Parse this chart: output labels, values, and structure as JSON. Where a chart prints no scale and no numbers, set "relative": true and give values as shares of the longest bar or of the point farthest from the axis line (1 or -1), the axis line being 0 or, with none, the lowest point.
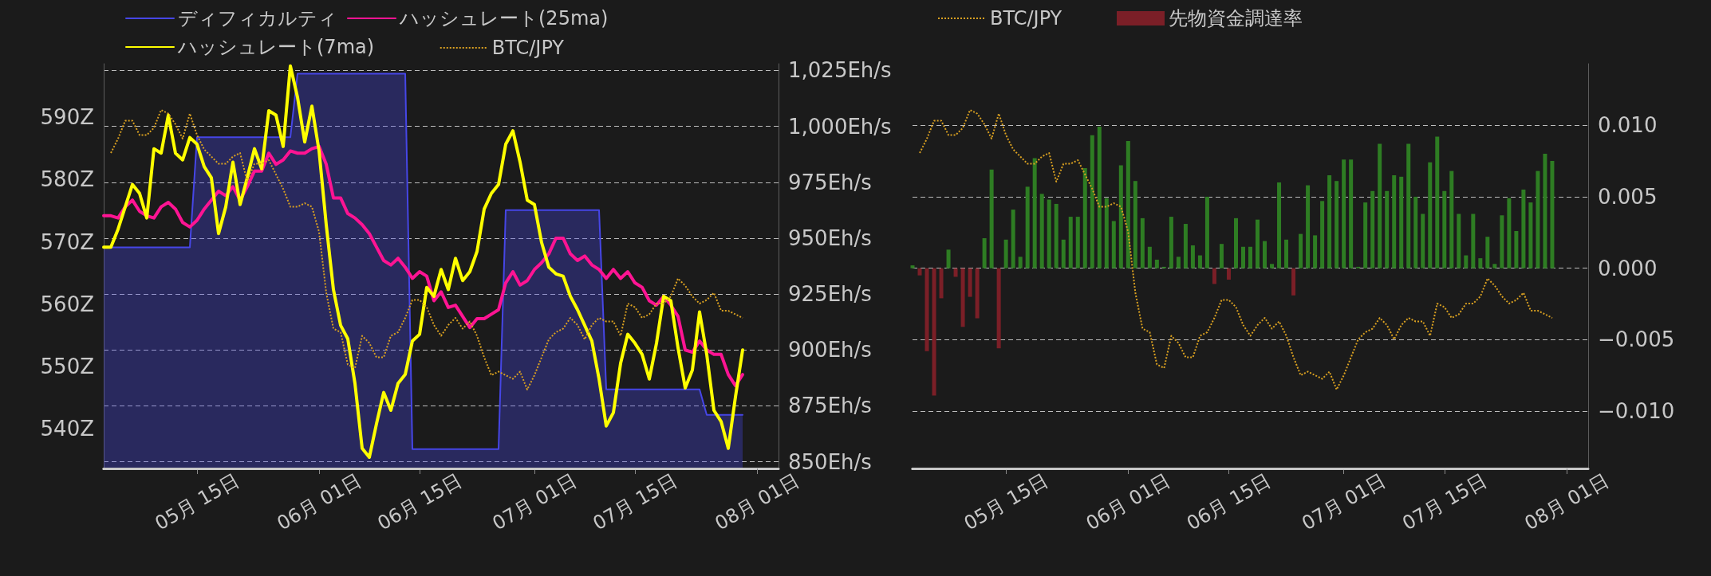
{
  "chart_data": [
    {
      "type": "line",
      "x": [
        "--05-02",
        "--05-03",
        "--05-04",
        "--05-05",
        "--05-06",
        "--05-07",
        "--05-08",
        "--05-09",
        "--05-10",
        "--05-11",
        "--05-12",
        "--05-13",
        "--05-14",
        "--05-15",
        "--05-16",
        "--05-17",
        "--05-18",
        "--05-19",
        "--05-20",
        "--05-21",
        "--05-22",
        "--05-23",
        "--05-24",
        "--05-25",
        "--05-26",
        "--05-27",
        "--05-28",
        "--05-29",
        "--05-30",
        "--05-31",
        "--06-01",
        "--06-02",
        "--06-03",
        "--06-04",
        "--06-05",
        "--06-06",
        "--06-07",
        "--06-08",
        "--06-09",
        "--06-10",
        "--06-11",
        "--06-12",
        "--06-13",
        "--06-14",
        "--06-15",
        "--06-16",
        "--06-17",
        "--06-18",
        "--06-19",
        "--06-20",
        "--06-21",
        "--06-22",
        "--06-23",
        "--06-24",
        "--06-25",
        "--06-26",
        "--06-27",
        "--06-28",
        "--06-29",
        "--06-30",
        "--07-01",
        "--07-02",
        "--07-03",
        "--07-04",
        "--07-05",
        "--07-06",
        "--07-07",
        "--07-08",
        "--07-09",
        "--07-10",
        "--07-11",
        "--07-12",
        "--07-13",
        "--07-14",
        "--07-15",
        "--07-16",
        "--07-17",
        "--07-18",
        "--07-19",
        "--07-20",
        "--07-21",
        "--07-22",
        "--07-23",
        "--07-24",
        "--07-25",
        "--07-26",
        "--07-27",
        "--07-28",
        "--07-29",
        "--07-30"
      ],
      "xlim": [
        "--05-02",
        "--08-04"
      ],
      "xticks": [
        {
          "value": "--05-15",
          "label": "05月 15日"
        },
        {
          "value": "--06-01",
          "label": "06月 01日"
        },
        {
          "value": "--06-15",
          "label": "06月 15日"
        },
        {
          "value": "--07-01",
          "label": "07月 01日"
        },
        {
          "value": "--07-15",
          "label": "07月 15日"
        },
        {
          "value": "--08-01",
          "label": "08月 01日"
        }
      ],
      "ylim": [
        533.6,
        598.6
      ],
      "yticks": [
        {
          "value": 540,
          "label": "540Z"
        },
        {
          "value": 550,
          "label": "550Z"
        },
        {
          "value": 560,
          "label": "560Z"
        },
        {
          "value": 570,
          "label": "570Z"
        },
        {
          "value": 580,
          "label": "580Z"
        },
        {
          "value": 590,
          "label": "590Z"
        }
      ],
      "y2lim": [
        847,
        1028
      ],
      "y2ticks": [
        {
          "value": 850,
          "label": "850Eh/s"
        },
        {
          "value": 875,
          "label": "875Eh/s"
        },
        {
          "value": 900,
          "label": "900Eh/s"
        },
        {
          "value": 925,
          "label": "925Eh/s"
        },
        {
          "value": 950,
          "label": "950Eh/s"
        },
        {
          "value": 975,
          "label": "975Eh/s"
        },
        {
          "value": 1000,
          "label": "1,000Eh/s"
        },
        {
          "value": 1025,
          "label": "1,025Eh/s"
        }
      ],
      "grid": "y2",
      "legend": "top left",
      "marker": "none",
      "series": [
        {
          "name": "ディフィカルティ",
          "type": "area",
          "color": "#4646e6",
          "values": [
            569.1,
            569.1,
            569.1,
            569.1,
            569.1,
            569.1,
            569.1,
            569.1,
            569.1,
            569.1,
            569.1,
            569.1,
            569.1,
            586.8,
            586.8,
            586.8,
            586.8,
            586.8,
            586.8,
            586.8,
            586.8,
            586.8,
            586.8,
            586.8,
            586.8,
            586.8,
            586.8,
            597,
            597,
            597,
            597,
            597,
            597,
            597,
            597,
            597,
            597,
            597,
            597,
            597,
            597,
            597,
            597,
            536.7,
            536.7,
            536.7,
            536.7,
            536.7,
            536.7,
            536.7,
            536.7,
            536.7,
            536.7,
            536.7,
            536.7,
            536.7,
            575.1,
            575.1,
            575.1,
            575.1,
            575.1,
            575.1,
            575.1,
            575.1,
            575.1,
            575.1,
            575.1,
            575.1,
            575.1,
            575.1,
            546.3,
            546.3,
            546.3,
            546.3,
            546.3,
            546.3,
            546.3,
            546.3,
            546.3,
            546.3,
            546.3,
            546.3,
            546.3,
            546.3,
            542.2,
            542.2,
            542.2,
            542.2,
            542.2,
            542.2
          ]
        },
        {
          "name": "ハッシュレート(25ma)",
          "axis": "y2",
          "color": "#ff1493",
          "values": [
            960,
            960,
            959,
            964,
            967,
            962,
            960,
            959,
            964,
            966,
            963,
            957,
            955,
            958,
            963,
            967,
            971,
            969,
            973,
            967,
            973,
            980,
            980,
            988,
            983,
            985,
            989,
            988,
            988,
            990,
            991,
            983,
            968,
            968,
            961,
            959,
            956,
            952,
            946,
            940,
            938,
            941,
            937,
            932,
            935,
            933,
            922,
            926,
            919,
            920,
            915,
            910,
            914,
            914,
            916,
            918,
            930,
            935,
            929,
            931,
            936,
            939,
            943,
            950,
            950,
            943,
            940,
            942,
            938,
            936,
            932,
            936,
            932,
            935,
            930,
            928,
            922,
            920,
            924,
            920,
            915,
            900,
            899,
            904,
            900,
            898,
            898,
            889,
            884,
            889
          ]
        },
        {
          "name": "ハッシュレート(7ma)",
          "axis": "y2",
          "color": "#ffff00",
          "values": [
            946,
            946,
            954,
            964,
            974,
            970,
            959,
            990,
            988,
            1005,
            988,
            985,
            995,
            992,
            982,
            977,
            952,
            964,
            984,
            965,
            977,
            990,
            981,
            1007,
            1005,
            991,
            1027,
            1013,
            993,
            1009,
            989,
            956,
            927,
            911,
            905,
            885,
            856,
            852,
            867,
            881,
            873,
            885,
            889,
            904,
            907,
            928,
            924,
            936,
            927,
            941,
            931,
            935,
            944,
            963,
            970,
            974,
            992,
            998,
            984,
            967,
            965,
            948,
            937,
            934,
            933,
            924,
            918,
            911,
            904,
            887,
            866,
            872,
            894,
            907,
            903,
            898,
            887,
            903,
            924,
            922,
            901,
            883,
            891,
            917,
            898,
            873,
            868,
            856,
            879,
            900
          ]
        }
      ]
    },
    {
      "type": "line",
      "relative": true,
      "categories": [
        null,
        null,
        null,
        null,
        null,
        null,
        null,
        null,
        null,
        null,
        null,
        null,
        null,
        null,
        null,
        null,
        null,
        null,
        null,
        null,
        null,
        null,
        null,
        null,
        null,
        null,
        null,
        null,
        null,
        null,
        null,
        null,
        null,
        null,
        null,
        null,
        null,
        null,
        null,
        null,
        null,
        null,
        null,
        null,
        null,
        null,
        null,
        null,
        null,
        null,
        null,
        null,
        null,
        null,
        null,
        null,
        null,
        null,
        null,
        null,
        null,
        null,
        null,
        null,
        null,
        null,
        null,
        null,
        null,
        null,
        null,
        null,
        null,
        null,
        null,
        null,
        null,
        null,
        null,
        null,
        null,
        null,
        null,
        null,
        null,
        null,
        null,
        null,
        null,
        null
      ],
      "legend": "top right",
      "marker": "none",
      "line_style": "dotted",
      "series": [
        {
          "name": "BTC/JPY",
          "color": "#d9a021",
          "values": [
            null,
            0.88,
            0.92,
            0.97,
            0.97,
            0.93,
            0.93,
            0.95,
            1.0,
            0.99,
            0.96,
            0.92,
            0.99,
            0.93,
            0.89,
            0.87,
            0.85,
            0.85,
            0.87,
            0.88,
            0.8,
            0.85,
            0.85,
            0.86,
            0.82,
            0.78,
            0.73,
            0.73,
            0.74,
            0.73,
            0.66,
            0.49,
            0.39,
            0.38,
            0.29,
            0.28,
            0.37,
            0.35,
            0.31,
            0.31,
            0.37,
            0.38,
            0.42,
            0.47,
            0.47,
            0.45,
            0.4,
            0.37,
            0.4,
            0.42,
            0.39,
            0.41,
            0.37,
            0.31,
            0.26,
            0.27,
            0.26,
            0.25,
            0.27,
            0.22,
            0.26,
            0.31,
            0.36,
            0.38,
            0.39,
            0.42,
            0.4,
            0.36,
            0.4,
            0.42,
            0.41,
            0.41,
            0.37,
            0.46,
            0.45,
            0.42,
            0.43,
            0.46,
            0.46,
            0.48,
            0.53,
            0.51,
            0.48,
            0.46,
            0.47,
            0.49,
            0.44,
            0.44,
            0.43,
            0.42
          ]
        }
      ]
    },
    {
      "type": "bar",
      "x": [
        "--05-02",
        "--05-03",
        "--05-04",
        "--05-05",
        "--05-06",
        "--05-07",
        "--05-08",
        "--05-09",
        "--05-10",
        "--05-11",
        "--05-12",
        "--05-13",
        "--05-14",
        "--05-15",
        "--05-16",
        "--05-17",
        "--05-18",
        "--05-19",
        "--05-20",
        "--05-21",
        "--05-22",
        "--05-23",
        "--05-24",
        "--05-25",
        "--05-26",
        "--05-27",
        "--05-28",
        "--05-29",
        "--05-30",
        "--05-31",
        "--06-01",
        "--06-02",
        "--06-03",
        "--06-04",
        "--06-05",
        "--06-06",
        "--06-07",
        "--06-08",
        "--06-09",
        "--06-10",
        "--06-11",
        "--06-12",
        "--06-13",
        "--06-14",
        "--06-15",
        "--06-16",
        "--06-17",
        "--06-18",
        "--06-19",
        "--06-20",
        "--06-21",
        "--06-22",
        "--06-23",
        "--06-24",
        "--06-25",
        "--06-26",
        "--06-27",
        "--06-28",
        "--06-29",
        "--06-30",
        "--07-01",
        "--07-02",
        "--07-03",
        "--07-04",
        "--07-05",
        "--07-06",
        "--07-07",
        "--07-08",
        "--07-09",
        "--07-10",
        "--07-11",
        "--07-12",
        "--07-13",
        "--07-14",
        "--07-15",
        "--07-16",
        "--07-17",
        "--07-18",
        "--07-19",
        "--07-20",
        "--07-21",
        "--07-22",
        "--07-23",
        "--07-24",
        "--07-25",
        "--07-26",
        "--07-27",
        "--07-28",
        "--07-29",
        "--07-30"
      ],
      "xlim": [
        "--05-02",
        "--08-04"
      ],
      "xticks": [
        {
          "value": "--05-15",
          "label": "05月 15日"
        },
        {
          "value": "--06-01",
          "label": "06月 01日"
        },
        {
          "value": "--06-15",
          "label": "06月 15日"
        },
        {
          "value": "--07-01",
          "label": "07月 01日"
        },
        {
          "value": "--07-15",
          "label": "07月 15日"
        },
        {
          "value": "--08-01",
          "label": "08月 01日"
        }
      ],
      "y2lim": [
        -0.014,
        0.0143
      ],
      "y2ticks": [
        {
          "value": -0.01,
          "label": "−0.010"
        },
        {
          "value": -0.005,
          "label": "−0.005"
        },
        {
          "value": 0,
          "label": "0.000"
        },
        {
          "value": 0.005,
          "label": "0.005"
        },
        {
          "value": 0.01,
          "label": "0.010"
        }
      ],
      "grid": "y2",
      "legend": "top left",
      "series": [
        {
          "name": "先物資金調達率",
          "axis": "y2",
          "color": "#7b1f27",
          "values": [
            0.0002,
            -0.0005,
            -0.0058,
            -0.0089,
            -0.0021,
            0.0013,
            -0.0006,
            -0.0041,
            -0.002,
            -0.0035,
            0.0021,
            0.0069,
            -0.0056,
            0.002,
            0.0041,
            0.0008,
            0.0057,
            0.0077,
            0.0052,
            0.0048,
            0.0045,
            0.002,
            0.0036,
            0.0036,
            0.007,
            0.0093,
            0.0099,
            0.0049,
            0.0033,
            0.0072,
            0.0089,
            0.0061,
            0.0035,
            0.0015,
            0.0006,
            0.0001,
            0.0036,
            0.0008,
            0.0031,
            0.0016,
            0.0009,
            0.005,
            -0.0011,
            0.0017,
            -0.0008,
            0.0035,
            0.0015,
            0.0015,
            0.0034,
            0.0019,
            0.0003,
            0.006,
            0.002,
            -0.0019,
            0.0024,
            0.0058,
            0.0023,
            0.0047,
            0.0065,
            0.0061,
            0.0076,
            0.0076,
            0.0001,
            0.0046,
            0.0054,
            0.0087,
            0.0054,
            0.0065,
            0.0064,
            0.0087,
            0.005,
            0.0038,
            0.0074,
            0.0092,
            0.0054,
            0.0068,
            0.0038,
            0.0009,
            0.0038,
            0.0007,
            0.0022,
            0.0003,
            0.0037,
            0.0049,
            0.0026,
            0.0055,
            0.0046,
            0.0068,
            0.008,
            0.0075
          ],
          "colors": [
            "#2e7d23",
            "#7b1f27",
            "#7b1f27",
            "#7b1f27",
            "#7b1f27",
            "#2e7d23",
            "#7b1f27",
            "#7b1f27",
            "#7b1f27",
            "#7b1f27",
            "#2e7d23",
            "#2e7d23",
            "#7b1f27",
            "#2e7d23",
            "#2e7d23",
            "#2e7d23",
            "#2e7d23",
            "#2e7d23",
            "#2e7d23",
            "#2e7d23",
            "#2e7d23",
            "#2e7d23",
            "#2e7d23",
            "#2e7d23",
            "#2e7d23",
            "#2e7d23",
            "#2e7d23",
            "#2e7d23",
            "#2e7d23",
            "#2e7d23",
            "#2e7d23",
            "#2e7d23",
            "#2e7d23",
            "#2e7d23",
            "#2e7d23",
            "#2e7d23",
            "#2e7d23",
            "#2e7d23",
            "#2e7d23",
            "#2e7d23",
            "#2e7d23",
            "#2e7d23",
            "#7b1f27",
            "#2e7d23",
            "#7b1f27",
            "#2e7d23",
            "#2e7d23",
            "#2e7d23",
            "#2e7d23",
            "#2e7d23",
            "#2e7d23",
            "#2e7d23",
            "#2e7d23",
            "#7b1f27",
            "#2e7d23",
            "#2e7d23",
            "#2e7d23",
            "#2e7d23",
            "#2e7d23",
            "#2e7d23",
            "#2e7d23",
            "#2e7d23",
            "#2e7d23",
            "#2e7d23",
            "#2e7d23",
            "#2e7d23",
            "#2e7d23",
            "#2e7d23",
            "#2e7d23",
            "#2e7d23",
            "#2e7d23",
            "#2e7d23",
            "#2e7d23",
            "#2e7d23",
            "#2e7d23",
            "#2e7d23",
            "#2e7d23",
            "#2e7d23",
            "#2e7d23",
            "#2e7d23",
            "#2e7d23",
            "#2e7d23",
            "#2e7d23",
            "#2e7d23",
            "#2e7d23",
            "#2e7d23",
            "#2e7d23",
            "#2e7d23",
            "#2e7d23",
            "#2e7d23"
          ]
        }
      ]
    },
    {
      "type": "line",
      "relative": true,
      "categories": [
        null,
        null,
        null,
        null,
        null,
        null,
        null,
        null,
        null,
        null,
        null,
        null,
        null,
        null,
        null,
        null,
        null,
        null,
        null,
        null,
        null,
        null,
        null,
        null,
        null,
        null,
        null,
        null,
        null,
        null,
        null,
        null,
        null,
        null,
        null,
        null,
        null,
        null,
        null,
        null,
        null,
        null,
        null,
        null,
        null,
        null,
        null,
        null,
        null,
        null,
        null,
        null,
        null,
        null,
        null,
        null,
        null,
        null,
        null,
        null,
        null,
        null,
        null,
        null,
        null,
        null,
        null,
        null,
        null,
        null,
        null,
        null,
        null,
        null,
        null,
        null,
        null,
        null,
        null,
        null,
        null,
        null,
        null,
        null,
        null,
        null,
        null,
        null,
        null,
        null
      ],
      "legend": "top left",
      "marker": "none",
      "line_style": "dotted",
      "series": [
        {
          "name": "BTC/JPY",
          "color": "#d9a021",
          "values": [
            null,
            0.88,
            0.92,
            0.97,
            0.97,
            0.93,
            0.93,
            0.95,
            1.0,
            0.99,
            0.96,
            0.92,
            0.99,
            0.93,
            0.89,
            0.87,
            0.85,
            0.85,
            0.87,
            0.88,
            0.8,
            0.85,
            0.85,
            0.86,
            0.82,
            0.78,
            0.73,
            0.73,
            0.74,
            0.73,
            0.66,
            0.49,
            0.39,
            0.38,
            0.29,
            0.28,
            0.37,
            0.35,
            0.31,
            0.31,
            0.37,
            0.38,
            0.42,
            0.47,
            0.47,
            0.45,
            0.4,
            0.37,
            0.4,
            0.42,
            0.39,
            0.41,
            0.37,
            0.31,
            0.26,
            0.27,
            0.26,
            0.25,
            0.27,
            0.22,
            0.26,
            0.31,
            0.36,
            0.38,
            0.39,
            0.42,
            0.4,
            0.36,
            0.4,
            0.42,
            0.41,
            0.41,
            0.37,
            0.46,
            0.45,
            0.42,
            0.43,
            0.46,
            0.46,
            0.48,
            0.53,
            0.51,
            0.48,
            0.46,
            0.47,
            0.49,
            0.44,
            0.44,
            0.43,
            0.42
          ]
        }
      ]
    }
  ]
}
